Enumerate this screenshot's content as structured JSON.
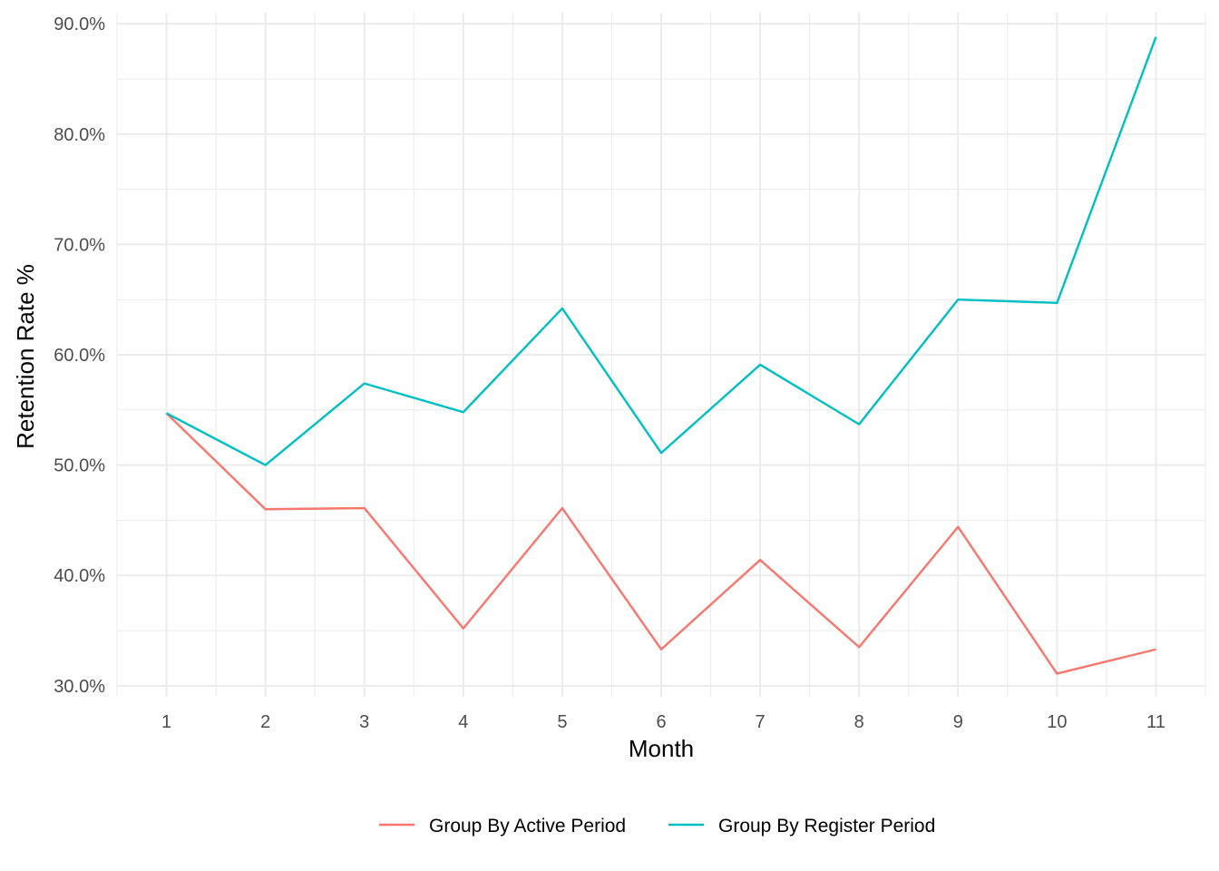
{
  "chart_data": {
    "type": "line",
    "title": "",
    "xlabel": "Month",
    "ylabel": "Retention Rate %",
    "x": [
      1,
      2,
      3,
      4,
      5,
      6,
      7,
      8,
      9,
      10,
      11
    ],
    "xlim": [
      0.5,
      11.5
    ],
    "ylim": [
      29.0,
      91.0
    ],
    "y_ticks": [
      30,
      40,
      50,
      60,
      70,
      80,
      90
    ],
    "y_tick_labels": [
      "30.0%",
      "40.0%",
      "50.0%",
      "60.0%",
      "70.0%",
      "80.0%",
      "90.0%"
    ],
    "x_tick_labels": [
      "1",
      "2",
      "3",
      "4",
      "5",
      "6",
      "7",
      "8",
      "9",
      "10",
      "11"
    ],
    "grid": true,
    "legend_position": "bottom",
    "series": [
      {
        "name": "Group By Active Period",
        "color": "#F8766D",
        "values": [
          54.7,
          46.0,
          46.1,
          35.2,
          46.1,
          33.3,
          41.4,
          33.5,
          44.4,
          31.1,
          33.3
        ]
      },
      {
        "name": "Group By Register Period",
        "color": "#00BFC4",
        "values": [
          54.7,
          50.0,
          57.4,
          54.8,
          64.2,
          51.1,
          59.1,
          53.7,
          65.0,
          64.7,
          88.8
        ]
      }
    ]
  }
}
